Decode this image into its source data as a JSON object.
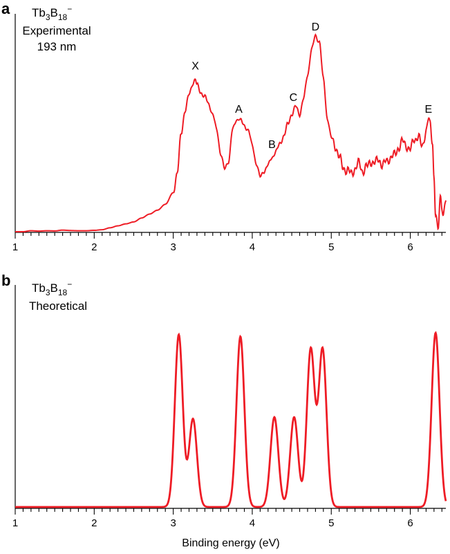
{
  "chart_data": [
    {
      "type": "line",
      "panel": "a",
      "title": {
        "formula_base1": "Tb",
        "formula_sub1": "3",
        "formula_base2": "B",
        "formula_sub2": "18",
        "formula_sup": "−"
      },
      "subtitle_lines": [
        "Experimental",
        "193 nm"
      ],
      "xlabel": "",
      "ylabel": "",
      "xlim": [
        1.0,
        6.45
      ],
      "ylim": [
        0,
        1.0
      ],
      "xticks": [
        1,
        2,
        3,
        4,
        5,
        6
      ],
      "grid": false,
      "color": "#ee1c25",
      "annotations": [
        {
          "text": "X",
          "x": 3.28,
          "y": 0.8
        },
        {
          "text": "A",
          "x": 3.83,
          "y": 0.58
        },
        {
          "text": "B",
          "x": 4.25,
          "y": 0.4
        },
        {
          "text": "C",
          "x": 4.52,
          "y": 0.64
        },
        {
          "text": "D",
          "x": 4.8,
          "y": 1.0
        },
        {
          "text": "E",
          "x": 6.23,
          "y": 0.58
        }
      ],
      "x": [
        1.0,
        1.1,
        1.2,
        1.3,
        1.4,
        1.5,
        1.6,
        1.7,
        1.8,
        1.9,
        2.0,
        2.1,
        2.2,
        2.3,
        2.4,
        2.5,
        2.6,
        2.7,
        2.8,
        2.9,
        3.0,
        3.05,
        3.1,
        3.15,
        3.2,
        3.25,
        3.28,
        3.3,
        3.35,
        3.4,
        3.45,
        3.5,
        3.55,
        3.6,
        3.65,
        3.7,
        3.75,
        3.8,
        3.83,
        3.85,
        3.9,
        3.95,
        4.0,
        4.05,
        4.1,
        4.15,
        4.2,
        4.25,
        4.3,
        4.35,
        4.4,
        4.45,
        4.5,
        4.55,
        4.6,
        4.65,
        4.7,
        4.75,
        4.8,
        4.85,
        4.9,
        4.95,
        5.0,
        5.05,
        5.1,
        5.15,
        5.2,
        5.25,
        5.3,
        5.35,
        5.4,
        5.45,
        5.5,
        5.55,
        5.6,
        5.65,
        5.7,
        5.75,
        5.8,
        5.85,
        5.9,
        5.95,
        6.0,
        6.05,
        6.1,
        6.15,
        6.2,
        6.23,
        6.25,
        6.28,
        6.3,
        6.32,
        6.35,
        6.38,
        6.4,
        6.42,
        6.45
      ],
      "y": [
        0.0,
        0.0,
        0.005,
        0.003,
        0.005,
        0.004,
        0.008,
        0.006,
        0.005,
        0.005,
        0.007,
        0.01,
        0.02,
        0.03,
        0.04,
        0.05,
        0.07,
        0.09,
        0.11,
        0.14,
        0.2,
        0.3,
        0.5,
        0.62,
        0.7,
        0.76,
        0.78,
        0.75,
        0.71,
        0.69,
        0.65,
        0.6,
        0.52,
        0.4,
        0.32,
        0.36,
        0.52,
        0.57,
        0.58,
        0.57,
        0.54,
        0.52,
        0.44,
        0.35,
        0.28,
        0.31,
        0.34,
        0.38,
        0.41,
        0.45,
        0.49,
        0.55,
        0.6,
        0.64,
        0.6,
        0.68,
        0.8,
        0.93,
        1.0,
        0.97,
        0.78,
        0.58,
        0.48,
        0.44,
        0.38,
        0.33,
        0.31,
        0.3,
        0.32,
        0.35,
        0.31,
        0.33,
        0.36,
        0.35,
        0.37,
        0.34,
        0.36,
        0.38,
        0.39,
        0.43,
        0.46,
        0.44,
        0.42,
        0.47,
        0.49,
        0.43,
        0.52,
        0.58,
        0.54,
        0.46,
        0.28,
        0.1,
        0.0,
        0.17,
        0.13,
        0.1,
        0.16
      ]
    },
    {
      "type": "line",
      "panel": "b",
      "title": {
        "formula_base1": "Tb",
        "formula_sub1": "3",
        "formula_base2": "B",
        "formula_sub2": "18",
        "formula_sup": "−"
      },
      "subtitle_lines": [
        "Theoretical"
      ],
      "xlabel": "Binding energy (eV)",
      "ylabel": "",
      "xlim": [
        1.0,
        6.45
      ],
      "ylim": [
        0,
        1.0
      ],
      "xticks": [
        1,
        2,
        3,
        4,
        5,
        6
      ],
      "grid": false,
      "color": "#ee1c25",
      "model": "sum of gaussian peaks",
      "peak_width_ev": 0.05,
      "peaks": [
        {
          "x": 3.07,
          "height": 0.94
        },
        {
          "x": 3.25,
          "height": 0.48
        },
        {
          "x": 3.85,
          "height": 0.93
        },
        {
          "x": 4.28,
          "height": 0.49
        },
        {
          "x": 4.53,
          "height": 0.49
        },
        {
          "x": 4.74,
          "height": 0.86
        },
        {
          "x": 4.89,
          "height": 0.86
        },
        {
          "x": 6.32,
          "height": 0.95
        }
      ]
    }
  ]
}
